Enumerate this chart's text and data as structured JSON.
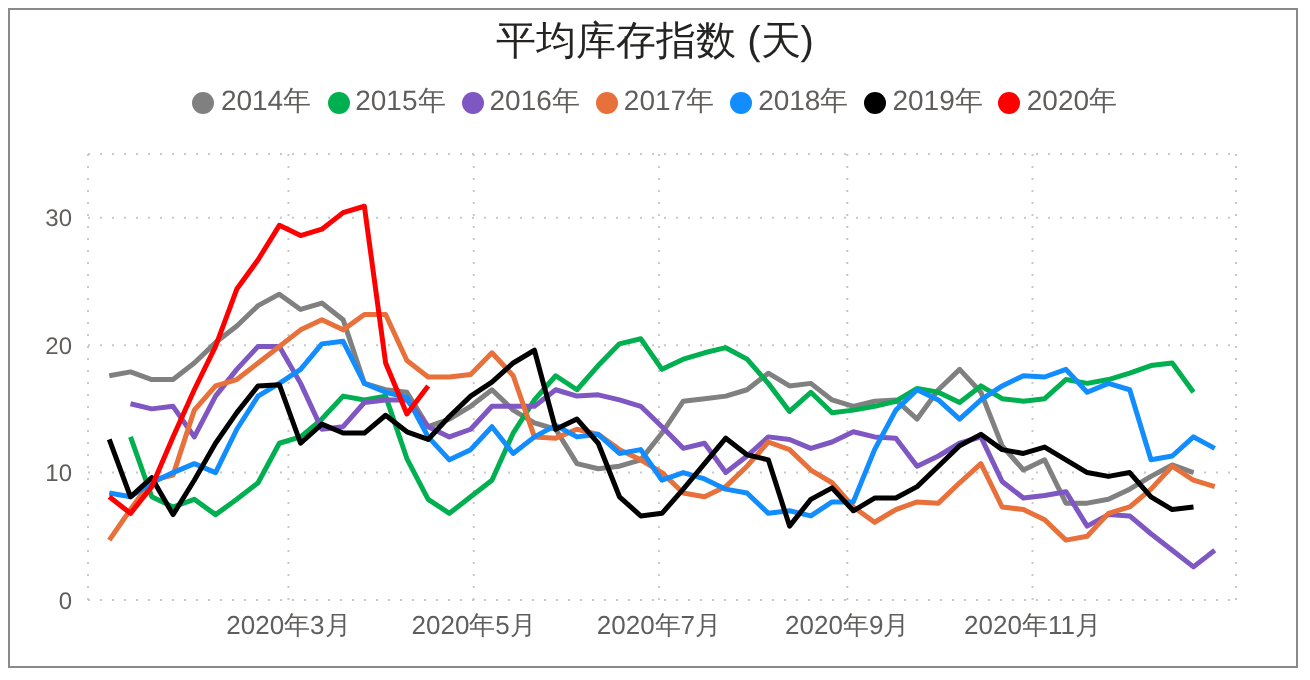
{
  "chart_data": {
    "type": "line",
    "title": "平均库存指数 (天)",
    "legend": "top",
    "grid": true,
    "marker": "none",
    "line_style": "solid",
    "x": [
      "2020-01-02",
      "2020-01-09",
      "2020-01-16",
      "2020-01-23",
      "2020-01-30",
      "2020-02-06",
      "2020-02-13",
      "2020-02-20",
      "2020-02-27",
      "2020-03-05",
      "2020-03-12",
      "2020-03-19",
      "2020-03-26",
      "2020-04-02",
      "2020-04-09",
      "2020-04-16",
      "2020-04-23",
      "2020-04-30",
      "2020-05-07",
      "2020-05-14",
      "2020-05-21",
      "2020-05-28",
      "2020-06-04",
      "2020-06-11",
      "2020-06-18",
      "2020-06-25",
      "2020-07-02",
      "2020-07-09",
      "2020-07-16",
      "2020-07-23",
      "2020-07-30",
      "2020-08-06",
      "2020-08-13",
      "2020-08-20",
      "2020-08-27",
      "2020-09-03",
      "2020-09-10",
      "2020-09-17",
      "2020-09-24",
      "2020-10-01",
      "2020-10-08",
      "2020-10-15",
      "2020-10-22",
      "2020-10-29",
      "2020-11-05",
      "2020-11-12",
      "2020-11-19",
      "2020-11-26",
      "2020-12-03",
      "2020-12-10",
      "2020-12-17",
      "2020-12-24",
      "2020-12-31"
    ],
    "xlim": [
      "2019-12-26",
      "2021-01-07"
    ],
    "xticks": [
      {
        "value": "2020-03-01",
        "label": "2020年3月"
      },
      {
        "value": "2020-05-01",
        "label": "2020年5月"
      },
      {
        "value": "2020-07-01",
        "label": "2020年7月"
      },
      {
        "value": "2020-09-01",
        "label": "2020年9月"
      },
      {
        "value": "2020-11-01",
        "label": "2020年11月"
      }
    ],
    "ylim": [
      0,
      35
    ],
    "yticks": [
      0,
      10,
      20,
      30
    ],
    "series": [
      {
        "name": "2014年",
        "color": "#808080",
        "values": [
          17.6,
          17.9,
          17.3,
          17.3,
          18.6,
          20.2,
          21.5,
          23.1,
          24.0,
          22.8,
          23.3,
          22.0,
          17.0,
          16.5,
          16.3,
          13.6,
          14.2,
          15.2,
          16.5,
          14.9,
          13.9,
          13.4,
          10.7,
          10.3,
          10.5,
          11.0,
          13.1,
          15.6,
          15.8,
          16.0,
          16.5,
          17.8,
          16.8,
          17.0,
          15.7,
          15.2,
          15.6,
          15.7,
          14.2,
          16.5,
          18.1,
          16.3,
          12.1,
          10.2,
          11.0,
          7.6,
          7.6,
          7.9,
          8.7,
          9.7,
          10.6,
          10.0,
          null
        ]
      },
      {
        "name": "2015年",
        "color": "#00b050",
        "values": [
          null,
          12.8,
          8.1,
          7.3,
          7.9,
          6.7,
          7.9,
          9.2,
          12.3,
          12.8,
          14.2,
          16.0,
          15.7,
          16.0,
          11.1,
          7.9,
          6.8,
          8.1,
          9.4,
          13.1,
          15.7,
          17.6,
          16.5,
          18.4,
          20.1,
          20.5,
          18.1,
          18.9,
          19.4,
          19.8,
          18.9,
          17.0,
          14.8,
          16.3,
          14.7,
          14.9,
          15.2,
          15.6,
          16.6,
          16.3,
          15.5,
          16.8,
          15.8,
          15.6,
          15.8,
          17.3,
          17.0,
          17.3,
          17.8,
          18.4,
          18.6,
          16.3,
          null
        ]
      },
      {
        "name": "2016年",
        "color": "#7e57c2",
        "values": [
          null,
          15.4,
          15.0,
          15.2,
          12.8,
          16.0,
          18.1,
          19.9,
          19.9,
          17.0,
          13.4,
          13.6,
          15.5,
          15.7,
          15.7,
          13.6,
          12.8,
          13.4,
          15.2,
          15.2,
          15.2,
          16.5,
          16.0,
          16.1,
          15.7,
          15.2,
          13.6,
          11.9,
          12.3,
          10.0,
          11.3,
          12.8,
          12.6,
          11.9,
          12.4,
          13.2,
          12.8,
          12.7,
          10.5,
          11.3,
          12.3,
          12.8,
          9.3,
          8.0,
          8.2,
          8.5,
          5.8,
          6.7,
          6.6,
          5.2,
          3.9,
          2.6,
          3.9
        ]
      },
      {
        "name": "2017年",
        "color": "#e8703a",
        "values": [
          4.7,
          7.1,
          9.4,
          9.8,
          14.9,
          16.8,
          17.3,
          18.6,
          19.9,
          21.2,
          22.0,
          21.2,
          22.4,
          22.4,
          18.8,
          17.5,
          17.5,
          17.7,
          19.4,
          17.6,
          12.8,
          12.7,
          13.4,
          13.0,
          11.8,
          11.0,
          10.0,
          8.4,
          8.1,
          8.9,
          10.5,
          12.4,
          11.8,
          10.2,
          9.2,
          7.3,
          6.1,
          7.1,
          7.7,
          7.6,
          9.2,
          10.7,
          7.3,
          7.1,
          6.3,
          4.7,
          5.0,
          6.8,
          7.3,
          8.7,
          10.5,
          9.4,
          8.9
        ]
      },
      {
        "name": "2018年",
        "color": "#118dff",
        "values": [
          8.4,
          8.1,
          9.2,
          10.0,
          10.7,
          10.0,
          13.4,
          16.0,
          17.0,
          18.1,
          20.1,
          20.3,
          17.0,
          16.3,
          15.9,
          12.8,
          11.0,
          11.8,
          13.6,
          11.5,
          12.8,
          13.7,
          12.8,
          13.0,
          11.5,
          11.8,
          9.4,
          10.0,
          9.5,
          8.7,
          8.4,
          6.8,
          7.0,
          6.6,
          7.7,
          7.7,
          11.8,
          14.9,
          16.5,
          15.7,
          14.2,
          15.7,
          16.8,
          17.6,
          17.5,
          18.1,
          16.3,
          17.0,
          16.5,
          11.0,
          11.3,
          12.8,
          11.9
        ]
      },
      {
        "name": "2019年",
        "color": "#000000",
        "values": [
          12.6,
          8.1,
          9.6,
          6.7,
          9.4,
          12.3,
          14.7,
          16.8,
          16.9,
          12.3,
          13.8,
          13.1,
          13.1,
          14.5,
          13.2,
          12.6,
          14.4,
          16.0,
          17.1,
          18.6,
          19.6,
          13.4,
          14.2,
          12.3,
          8.1,
          6.6,
          6.8,
          8.7,
          10.7,
          12.7,
          11.4,
          11.0,
          5.8,
          7.9,
          8.8,
          7.0,
          8.0,
          8.0,
          8.9,
          10.5,
          12.1,
          13.0,
          11.8,
          11.5,
          12.0,
          11.0,
          10.0,
          9.7,
          10.0,
          8.1,
          7.1,
          7.3,
          null
        ]
      },
      {
        "name": "2020年",
        "color": "#ff0000",
        "values": [
          8.1,
          6.8,
          8.9,
          12.8,
          16.5,
          19.9,
          24.4,
          26.7,
          29.4,
          28.6,
          29.1,
          30.4,
          30.9,
          18.6,
          14.6,
          16.8,
          null,
          null,
          null,
          null,
          null,
          null,
          null,
          null,
          null,
          null,
          null,
          null,
          null,
          null,
          null,
          null,
          null,
          null,
          null,
          null,
          null,
          null,
          null,
          null,
          null,
          null,
          null,
          null,
          null,
          null,
          null,
          null,
          null,
          null,
          null,
          null,
          null
        ]
      }
    ]
  }
}
